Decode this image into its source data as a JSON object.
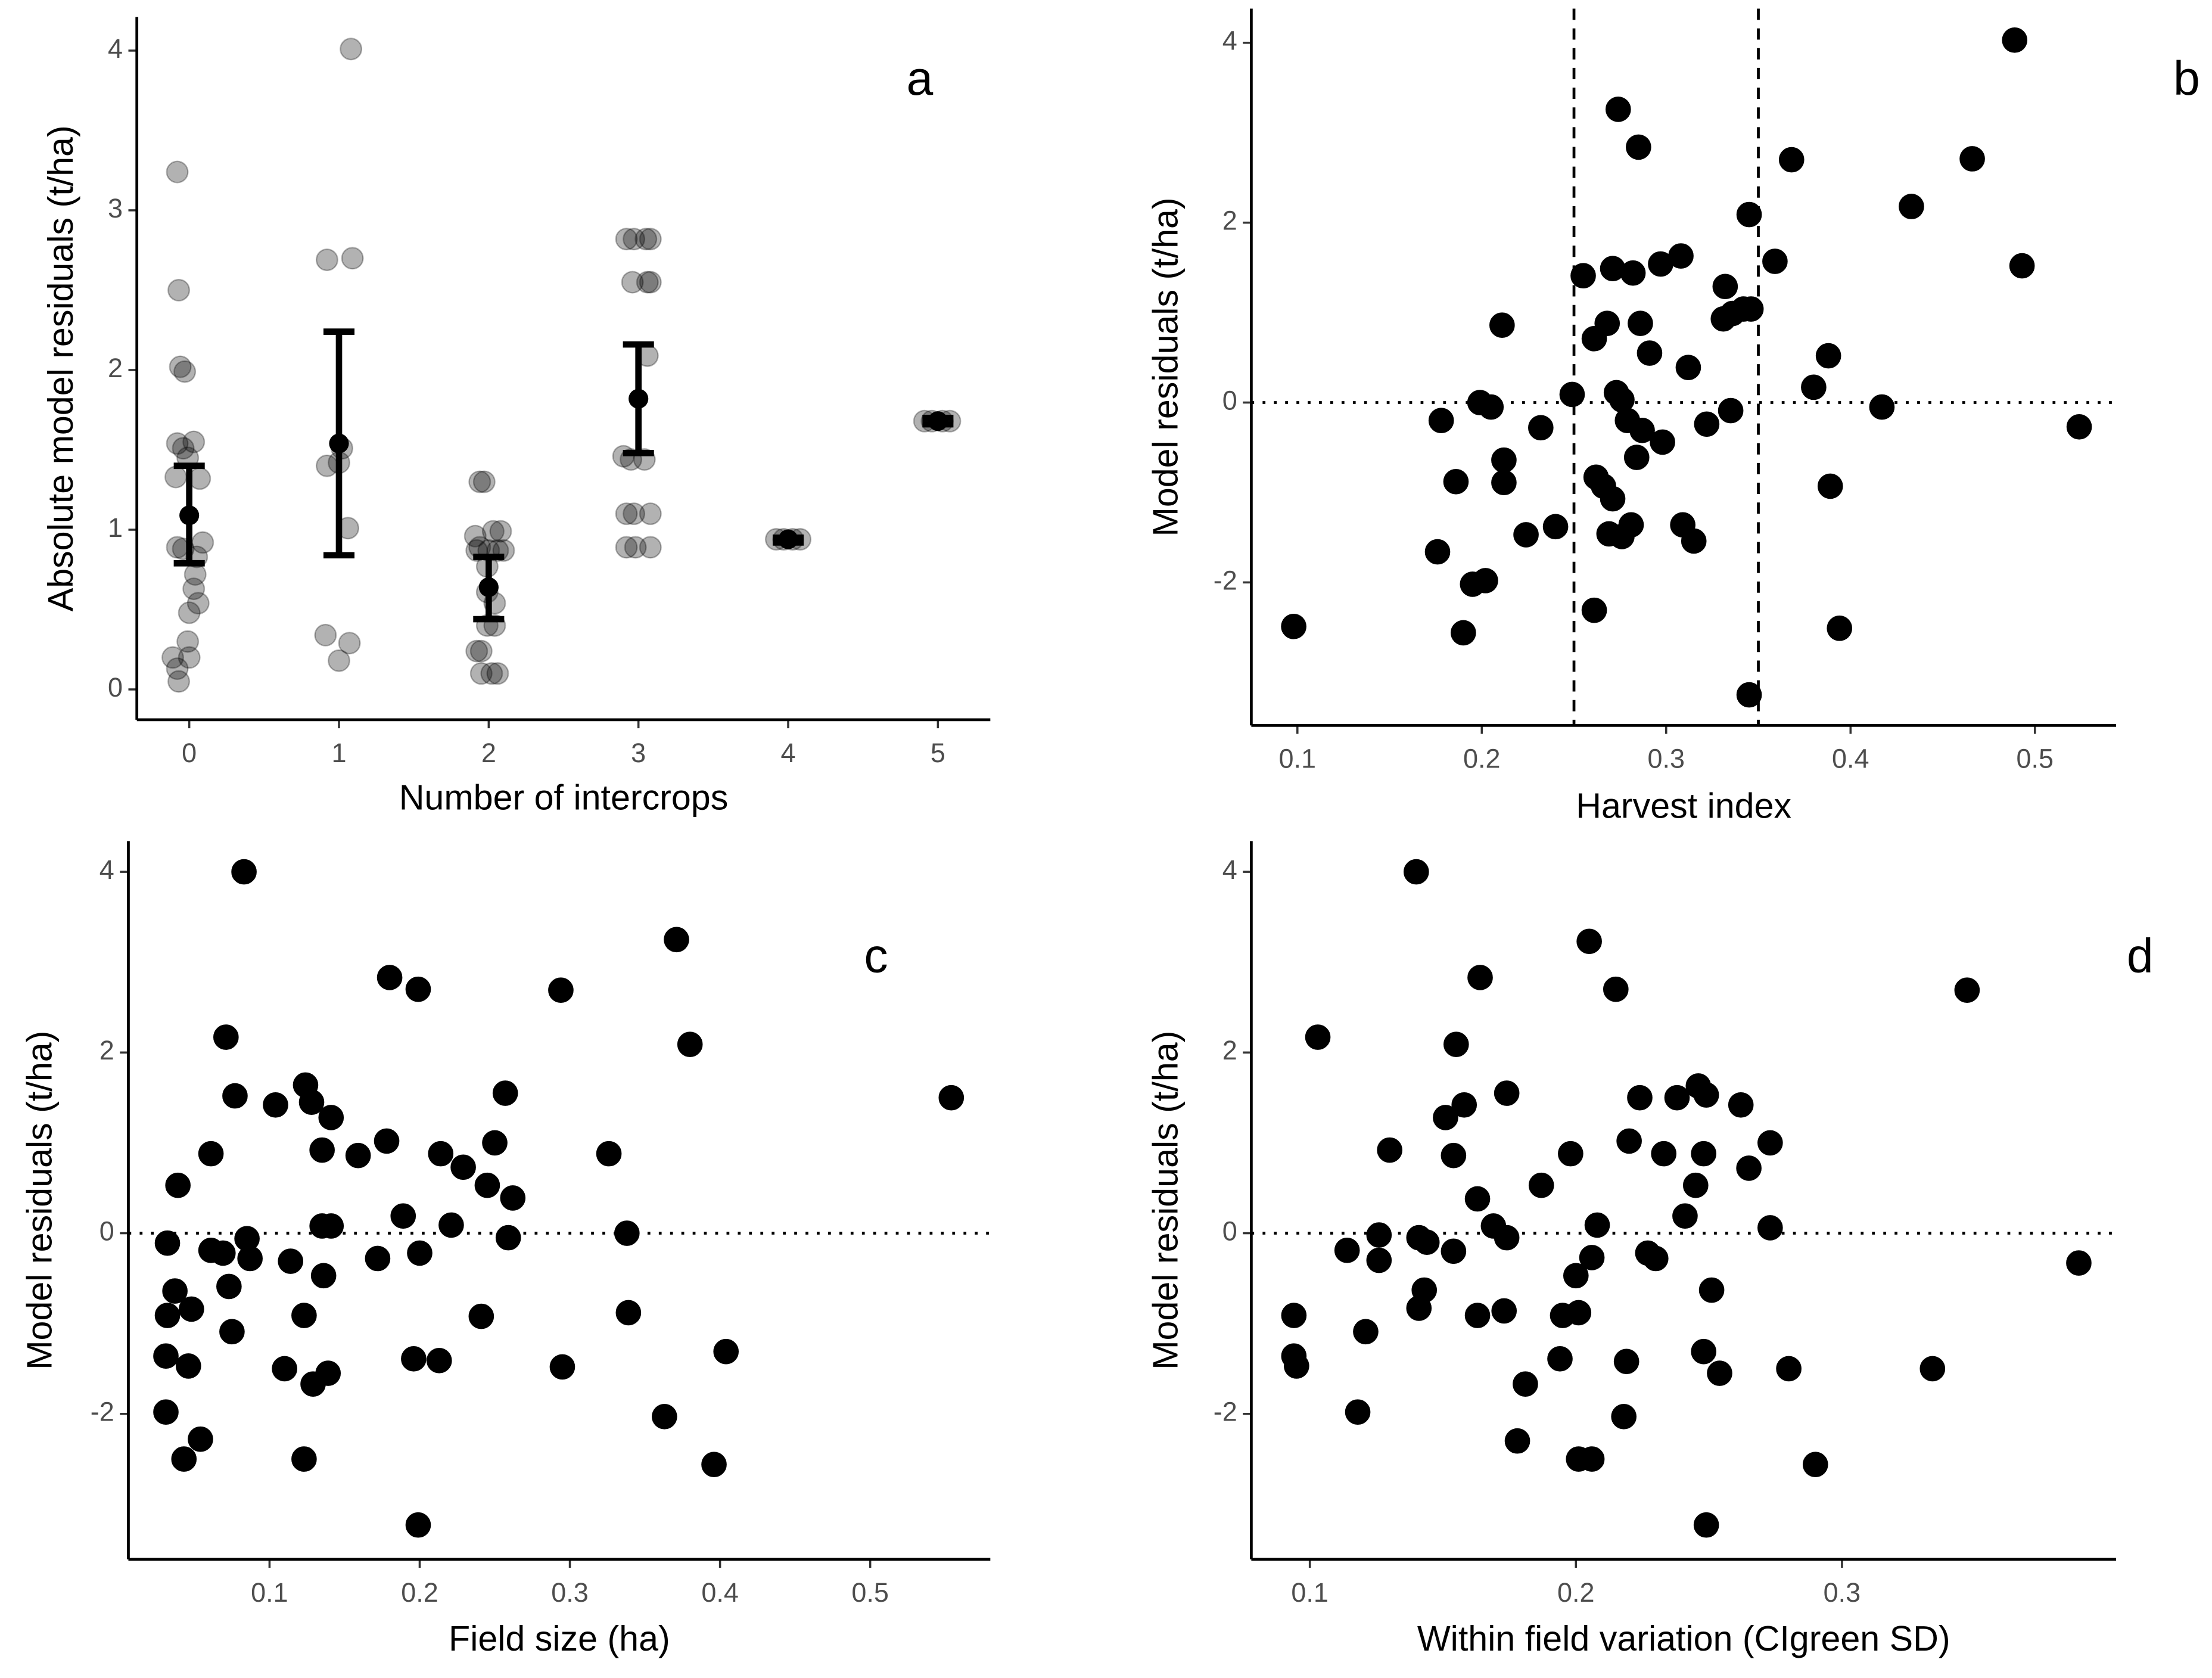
{
  "chart_data": [
    {
      "type": "scatter",
      "annotation": "a",
      "x_label": "Number of intercrops",
      "y_label": "Absolute model residuals (t/ha)",
      "color": "#000000",
      "opacity": 0.3,
      "x": [
        -0.08,
        -0.07,
        -0.06,
        -0.03,
        -0.08,
        0.03,
        -0.04,
        -0.01,
        -0.09,
        0.07,
        -0.08,
        0.09,
        -0.04,
        0.05,
        0.04,
        0.03,
        0.06,
        0,
        -0.01,
        -0.11,
        0,
        -0.08,
        -0.07,
        1.08,
        0.92,
        1.09,
        0.92,
        1.0,
        1.02,
        1.06,
        0.91,
        1.07,
        1.0,
        1.94,
        1.97,
        1.92,
        2.0,
        2.06,
        2.1,
        1.94,
        2.03,
        2.08,
        1.91,
        1.95,
        1.92,
        1.95,
        2.02,
        2.06,
        1.99,
        2.04,
        1.99,
        2.04,
        1.99,
        2.92,
        2.97,
        3.05,
        3.08,
        2.96,
        3.06,
        3.08,
        3.06,
        2.9,
        2.95,
        3.04,
        2.92,
        2.97,
        3.08,
        2.92,
        2.98,
        3.08,
        3.92,
        3.97,
        4.03,
        4.08,
        4.91,
        4.96,
        5.03,
        5.08
      ],
      "y": [
        3.24,
        2.5,
        2.02,
        1.99,
        1.54,
        1.55,
        1.51,
        1.45,
        1.33,
        1.32,
        0.89,
        0.92,
        0.88,
        0.83,
        0.72,
        0.63,
        0.54,
        0.48,
        0.3,
        0.2,
        0.2,
        0.13,
        0.05,
        4.01,
        2.69,
        2.7,
        1.4,
        1.42,
        1.51,
        1.01,
        0.34,
        0.29,
        0.18,
        1.3,
        1.3,
        0.87,
        0.87,
        0.87,
        0.87,
        0.89,
        0.99,
        0.99,
        0.96,
        0.24,
        0.24,
        0.1,
        0.1,
        0.1,
        0.4,
        0.4,
        0.77,
        0.54,
        0.61,
        2.82,
        2.82,
        2.82,
        2.82,
        2.55,
        2.55,
        2.55,
        2.09,
        1.46,
        1.44,
        1.44,
        1.1,
        1.1,
        1.1,
        0.89,
        0.89,
        0.89,
        0.94,
        0.94,
        0.94,
        0.94,
        1.68,
        1.68,
        1.68,
        1.68
      ],
      "error_bars": {
        "color": "#000000",
        "x": [
          0,
          1,
          2,
          3,
          4,
          5
        ],
        "mean": [
          1.09,
          1.54,
          0.64,
          1.82,
          0.94,
          1.68
        ],
        "lower": [
          0.79,
          0.84,
          0.44,
          1.48,
          0.92,
          1.66
        ],
        "upper": [
          1.4,
          2.24,
          0.83,
          2.16,
          0.95,
          1.7
        ]
      },
      "xlim": [
        -0.35,
        5.35
      ],
      "ylim": [
        -0.19,
        4.21
      ],
      "xticks": [
        0,
        1,
        2,
        3,
        4,
        5
      ],
      "yticks": [
        0,
        1,
        2,
        3,
        4
      ]
    },
    {
      "type": "scatter",
      "annotation": "b",
      "x_label": "Harvest index",
      "y_label": "Model residuals (t/ha)",
      "color": "#000000",
      "opacity": 1,
      "hlines": [
        0
      ],
      "vlines": [
        0.25,
        0.35
      ],
      "x": [
        0.098,
        0.176,
        0.178,
        0.186,
        0.19,
        0.195,
        0.202,
        0.199,
        0.205,
        0.211,
        0.212,
        0.212,
        0.224,
        0.232,
        0.24,
        0.249,
        0.255,
        0.261,
        0.268,
        0.262,
        0.261,
        0.266,
        0.269,
        0.271,
        0.273,
        0.271,
        0.274,
        0.276,
        0.276,
        0.281,
        0.279,
        0.282,
        0.285,
        0.286,
        0.284,
        0.287,
        0.291,
        0.297,
        0.298,
        0.308,
        0.312,
        0.309,
        0.315,
        0.322,
        0.332,
        0.331,
        0.336,
        0.335,
        0.342,
        0.346,
        0.345,
        0.345,
        0.359,
        0.368,
        0.38,
        0.388,
        0.389,
        0.394,
        0.417,
        0.433,
        0.466,
        0.489,
        0.493,
        0.524
      ],
      "y": [
        -2.49,
        -1.66,
        -0.2,
        -0.88,
        -2.56,
        -2.02,
        -1.98,
        0.0,
        -0.05,
        0.86,
        -0.64,
        -0.89,
        -1.47,
        -0.28,
        -1.38,
        0.09,
        1.41,
        0.71,
        0.88,
        -0.83,
        -2.31,
        -0.93,
        -1.46,
        -1.07,
        0.11,
        1.49,
        3.26,
        0.03,
        -1.49,
        -1.36,
        -0.2,
        1.44,
        2.84,
        0.88,
        -0.61,
        -0.31,
        0.55,
        1.54,
        -0.44,
        1.63,
        0.39,
        -1.36,
        -1.54,
        -0.24,
        1.29,
        0.93,
        0.99,
        -0.09,
        1.04,
        1.04,
        2.09,
        -3.25,
        1.57,
        2.7,
        0.17,
        0.52,
        -0.93,
        -2.51,
        -0.05,
        2.18,
        2.71,
        4.03,
        1.52,
        -0.27
      ],
      "xlim": [
        0.075,
        0.544
      ],
      "ylim": [
        -3.59,
        4.38
      ],
      "xticks": [
        0.1,
        0.2,
        0.3,
        0.4,
        0.5
      ],
      "yticks": [
        -2,
        0,
        2,
        4
      ]
    },
    {
      "type": "scatter",
      "annotation": "c",
      "x_label": "Field size (ha)",
      "y_label": "Model residuals (t/ha)",
      "color": "#000000",
      "opacity": 1,
      "hlines": [
        0
      ],
      "x": [
        0.083,
        0.071,
        0.077,
        0.061,
        0.039,
        0.032,
        0.037,
        0.032,
        0.048,
        0.031,
        0.046,
        0.031,
        0.054,
        0.043,
        0.061,
        0.069,
        0.073,
        0.075,
        0.085,
        0.087,
        0.104,
        0.114,
        0.11,
        0.124,
        0.128,
        0.123,
        0.123,
        0.129,
        0.135,
        0.135,
        0.141,
        0.136,
        0.141,
        0.139,
        0.159,
        0.172,
        0.178,
        0.18,
        0.189,
        0.196,
        0.199,
        0.2,
        0.199,
        0.214,
        0.213,
        0.221,
        0.229,
        0.241,
        0.245,
        0.25,
        0.257,
        0.259,
        0.262,
        0.294,
        0.295,
        0.326,
        0.338,
        0.339,
        0.363,
        0.371,
        0.38,
        0.396,
        0.404,
        0.554
      ],
      "y": [
        4.0,
        2.17,
        1.52,
        0.88,
        0.53,
        -0.11,
        -0.64,
        -0.91,
        -0.84,
        -1.36,
        -1.47,
        -1.98,
        -2.28,
        -2.5,
        -0.19,
        -0.22,
        -0.59,
        -1.09,
        -0.06,
        -0.28,
        1.42,
        -0.31,
        -1.5,
        1.64,
        1.45,
        -0.91,
        -2.5,
        -1.67,
        0.92,
        0.08,
        0.08,
        -0.47,
        1.28,
        -1.55,
        0.86,
        -0.28,
        1.02,
        2.83,
        0.19,
        -1.39,
        2.7,
        -0.22,
        -3.23,
        0.88,
        -1.41,
        0.09,
        0.73,
        -0.92,
        0.53,
        1.0,
        1.55,
        -0.05,
        0.39,
        2.69,
        -1.48,
        0.88,
        0.0,
        -0.88,
        -2.03,
        3.25,
        2.09,
        -2.56,
        -1.31,
        1.5
      ],
      "xlim": [
        0.006,
        0.58
      ],
      "ylim": [
        -3.61,
        4.34
      ],
      "xticks": [
        0.1,
        0.2,
        0.3,
        0.4,
        0.5
      ],
      "yticks": [
        -2,
        0,
        2,
        4
      ]
    },
    {
      "type": "scatter",
      "annotation": "d",
      "x_label": "Within field variation (CIgreen SD)",
      "y_label": "Model residuals (t/ha)",
      "color": "#000000",
      "opacity": 1,
      "hlines": [
        0
      ],
      "x": [
        0.14,
        0.103,
        0.094,
        0.094,
        0.095,
        0.114,
        0.118,
        0.121,
        0.126,
        0.126,
        0.13,
        0.141,
        0.144,
        0.143,
        0.141,
        0.151,
        0.158,
        0.154,
        0.154,
        0.155,
        0.164,
        0.163,
        0.163,
        0.169,
        0.174,
        0.173,
        0.174,
        0.178,
        0.181,
        0.187,
        0.194,
        0.195,
        0.198,
        0.2,
        0.201,
        0.201,
        0.205,
        0.206,
        0.206,
        0.208,
        0.215,
        0.218,
        0.219,
        0.22,
        0.224,
        0.227,
        0.23,
        0.233,
        0.238,
        0.241,
        0.245,
        0.246,
        0.248,
        0.248,
        0.249,
        0.251,
        0.254,
        0.262,
        0.265,
        0.273,
        0.273,
        0.28,
        0.29,
        0.249,
        0.334,
        0.347,
        0.389
      ],
      "y": [
        4.0,
        2.17,
        -0.91,
        -1.36,
        -1.47,
        -0.19,
        -1.98,
        -1.09,
        -0.3,
        -0.02,
        0.92,
        -0.05,
        -0.1,
        -0.63,
        -0.83,
        1.28,
        1.42,
        -0.2,
        0.86,
        2.09,
        2.83,
        0.38,
        -0.91,
        0.08,
        -0.05,
        -0.86,
        1.55,
        -2.3,
        -1.67,
        0.53,
        -1.39,
        -0.91,
        0.88,
        -0.47,
        -0.88,
        -2.5,
        3.23,
        -0.27,
        -2.5,
        0.09,
        2.7,
        -2.03,
        -1.42,
        1.02,
        1.5,
        -0.22,
        -0.28,
        0.88,
        1.5,
        0.19,
        0.53,
        1.63,
        0.88,
        -1.31,
        1.53,
        -0.63,
        -1.55,
        1.42,
        0.72,
        1.0,
        0.06,
        -1.5,
        -2.56,
        -3.23,
        -1.5,
        2.69,
        -0.33
      ],
      "xlim": [
        0.078,
        0.403
      ],
      "ylim": [
        -3.61,
        4.34
      ],
      "xticks": [
        0.1,
        0.2,
        0.3
      ],
      "yticks": [
        -2,
        0,
        2,
        4
      ]
    }
  ]
}
